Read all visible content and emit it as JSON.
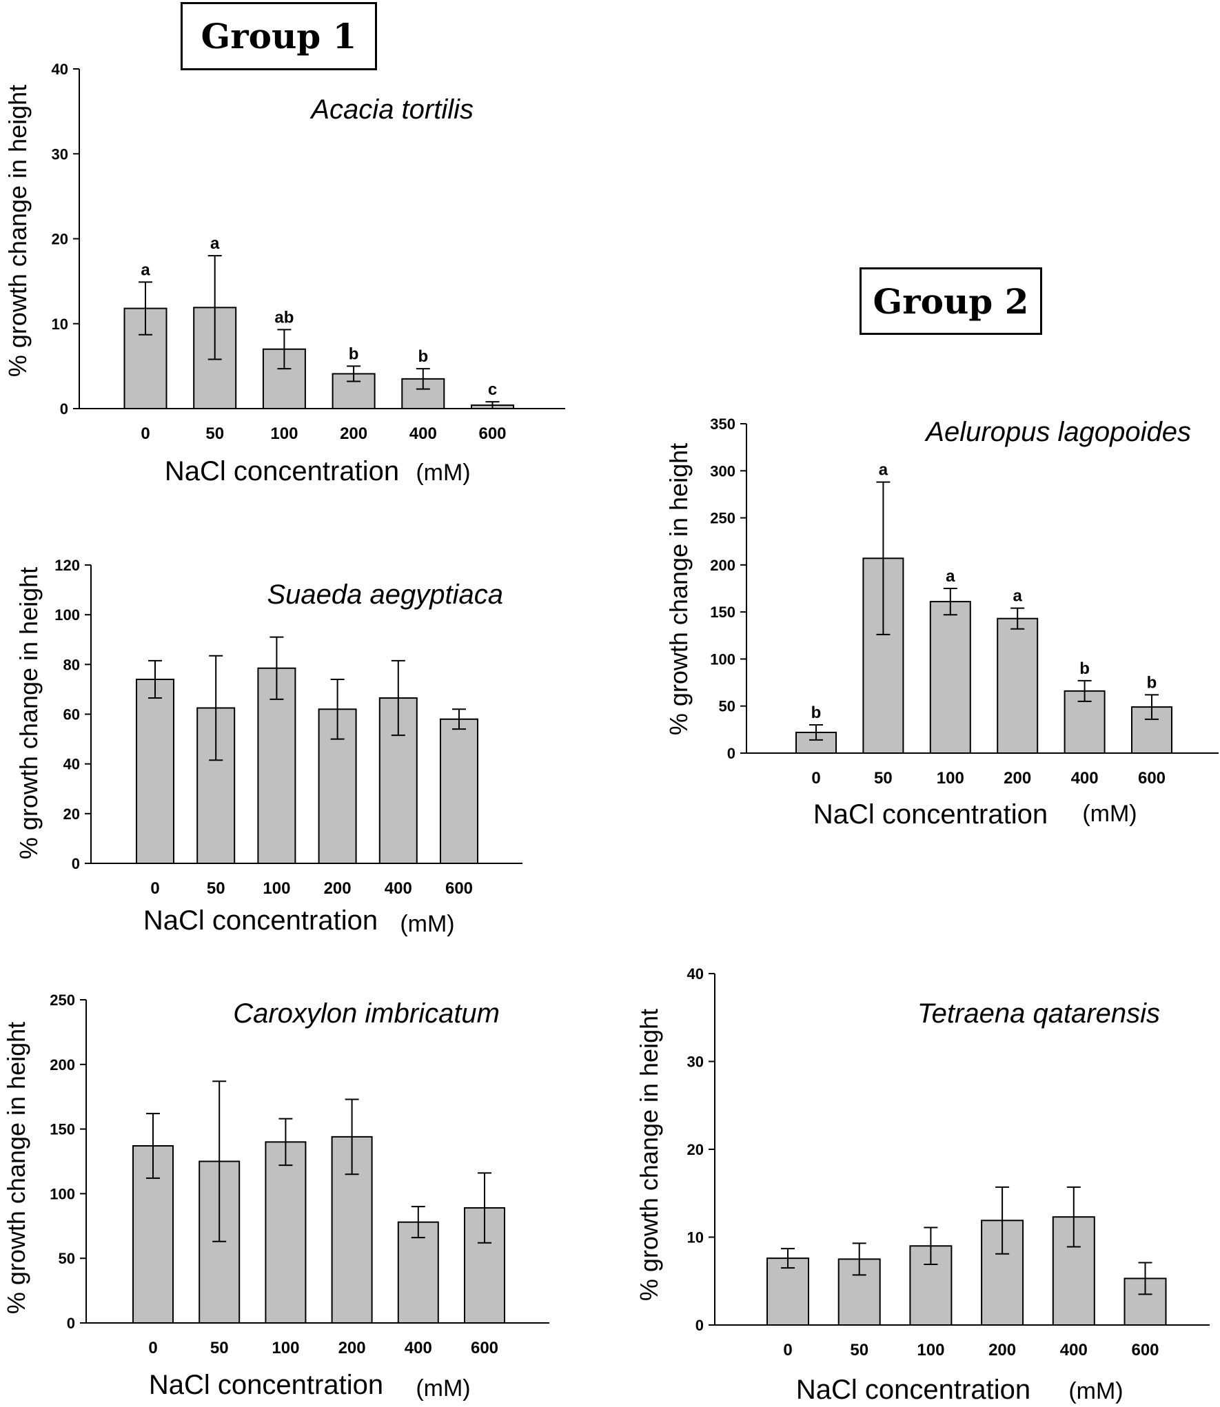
{
  "groups": {
    "group1_label": "Group 1",
    "group2_label": "Group 2"
  },
  "colors": {
    "bar": "#c0c0c0",
    "stroke": "#000000"
  },
  "chart_data": [
    {
      "id": "acacia",
      "type": "bar",
      "title": "Acacia tortilis",
      "xlabel": "NaCl concentration",
      "xunit": "(mM)",
      "ylabel": "% growth change in height",
      "categories": [
        "0",
        "50",
        "100",
        "200",
        "400",
        "600"
      ],
      "values": [
        11.8,
        11.9,
        7.0,
        4.1,
        3.5,
        0.4
      ],
      "errors": [
        3.1,
        6.1,
        2.3,
        0.9,
        1.2,
        0.4
      ],
      "significance": [
        "a",
        "a",
        "ab",
        "b",
        "b",
        "c"
      ],
      "ylim": [
        0,
        40
      ],
      "yticks": [
        0,
        10,
        20,
        30,
        40
      ]
    },
    {
      "id": "suaeda",
      "type": "bar",
      "title": "Suaeda aegyptiaca",
      "xlabel": "NaCl concentration",
      "xunit": "(mM)",
      "ylabel": "% growth change in height",
      "categories": [
        "0",
        "50",
        "100",
        "200",
        "400",
        "600"
      ],
      "values": [
        74,
        62.5,
        78.5,
        62,
        66.5,
        58
      ],
      "errors": [
        7.5,
        21,
        12.5,
        12,
        15,
        4
      ],
      "significance": [
        "",
        "",
        "",
        "",
        "",
        ""
      ],
      "ylim": [
        0,
        120
      ],
      "yticks": [
        0,
        20,
        40,
        60,
        80,
        100,
        120
      ]
    },
    {
      "id": "caroxylon",
      "type": "bar",
      "title": "Caroxylon imbricatum",
      "xlabel": "NaCl concentration",
      "xunit": "(mM)",
      "ylabel": "% growth change in height",
      "categories": [
        "0",
        "50",
        "100",
        "200",
        "400",
        "600"
      ],
      "values": [
        137,
        125,
        140,
        144,
        78,
        89
      ],
      "errors": [
        25,
        62,
        18,
        29,
        12,
        27
      ],
      "significance": [
        "",
        "",
        "",
        "",
        "",
        ""
      ],
      "ylim": [
        0,
        250
      ],
      "yticks": [
        0,
        50,
        100,
        150,
        200,
        250
      ]
    },
    {
      "id": "aeluropus",
      "type": "bar",
      "title": "Aeluropus lagopoides",
      "xlabel": "NaCl concentration",
      "xunit": "(mM)",
      "ylabel": "% growth change in height",
      "categories": [
        "0",
        "50",
        "100",
        "200",
        "400",
        "600"
      ],
      "values": [
        22,
        207,
        161,
        143,
        66,
        49
      ],
      "errors": [
        8,
        81,
        14,
        11,
        11,
        13
      ],
      "significance": [
        "b",
        "a",
        "a",
        "a",
        "b",
        "b"
      ],
      "ylim": [
        0,
        350
      ],
      "yticks": [
        0,
        50,
        100,
        150,
        200,
        250,
        300,
        350
      ]
    },
    {
      "id": "tetraena",
      "type": "bar",
      "title": "Tetraena qatarensis",
      "xlabel": "NaCl concentration",
      "xunit": "(mM)",
      "ylabel": "% growth change in height",
      "categories": [
        "0",
        "50",
        "100",
        "200",
        "400",
        "600"
      ],
      "values": [
        7.6,
        7.5,
        9.0,
        11.9,
        12.3,
        5.3
      ],
      "errors": [
        1.1,
        1.8,
        2.1,
        3.8,
        3.4,
        1.8
      ],
      "significance": [
        "",
        "",
        "",
        "",
        "",
        ""
      ],
      "ylim": [
        0,
        40
      ],
      "yticks": [
        0,
        10,
        20,
        30,
        40
      ]
    }
  ]
}
